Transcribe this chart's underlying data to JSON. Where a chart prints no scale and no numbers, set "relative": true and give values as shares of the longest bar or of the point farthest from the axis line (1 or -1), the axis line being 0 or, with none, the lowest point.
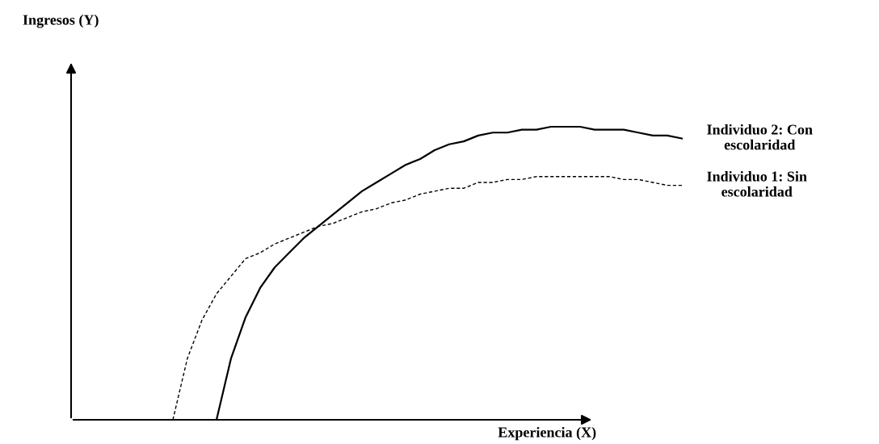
{
  "chart_data": {
    "type": "line",
    "relative": true,
    "xlabel": "Experiencia (X)",
    "annotations": [
      "Ingresos (Y)"
    ],
    "legend": false,
    "marker": "none",
    "categories": [
      null,
      null,
      null,
      null,
      null,
      null,
      null,
      null,
      null,
      null,
      null,
      null,
      null,
      null,
      null,
      null,
      null,
      null,
      null,
      null,
      null,
      null,
      null,
      null,
      null,
      null,
      null,
      null,
      null,
      null,
      null,
      null,
      null,
      null,
      null,
      null,
      null,
      null,
      null,
      null,
      null,
      null,
      null
    ],
    "series": [
      {
        "name": "Individuo 2: Con\nescolaridad",
        "color": "#000000",
        "line_style": "solid",
        "values": [
          null,
          null,
          null,
          null,
          null,
          null,
          null,
          null,
          null,
          null,
          0,
          0.21,
          0.35,
          0.45,
          0.52,
          0.57,
          0.62,
          0.66,
          0.7,
          0.74,
          0.78,
          0.81,
          0.84,
          0.87,
          0.89,
          0.92,
          0.94,
          0.95,
          0.97,
          0.98,
          0.98,
          0.99,
          0.99,
          1,
          1,
          1,
          0.99,
          0.99,
          0.99,
          0.98,
          0.97,
          0.97,
          0.96
        ]
      },
      {
        "name": "Individuo 1: Sin\nescolaridad",
        "color": "#000000",
        "line_style": "dashed",
        "values": [
          null,
          null,
          null,
          null,
          null,
          null,
          null,
          0,
          0.21,
          0.34,
          0.43,
          0.49,
          0.55,
          0.57,
          0.6,
          0.62,
          0.64,
          0.66,
          0.67,
          0.69,
          0.71,
          0.72,
          0.74,
          0.75,
          0.77,
          0.78,
          0.79,
          0.79,
          0.81,
          0.81,
          0.82,
          0.82,
          0.83,
          0.83,
          0.83,
          0.83,
          0.83,
          0.83,
          0.82,
          0.82,
          0.81,
          0.8,
          0.8
        ]
      }
    ]
  }
}
